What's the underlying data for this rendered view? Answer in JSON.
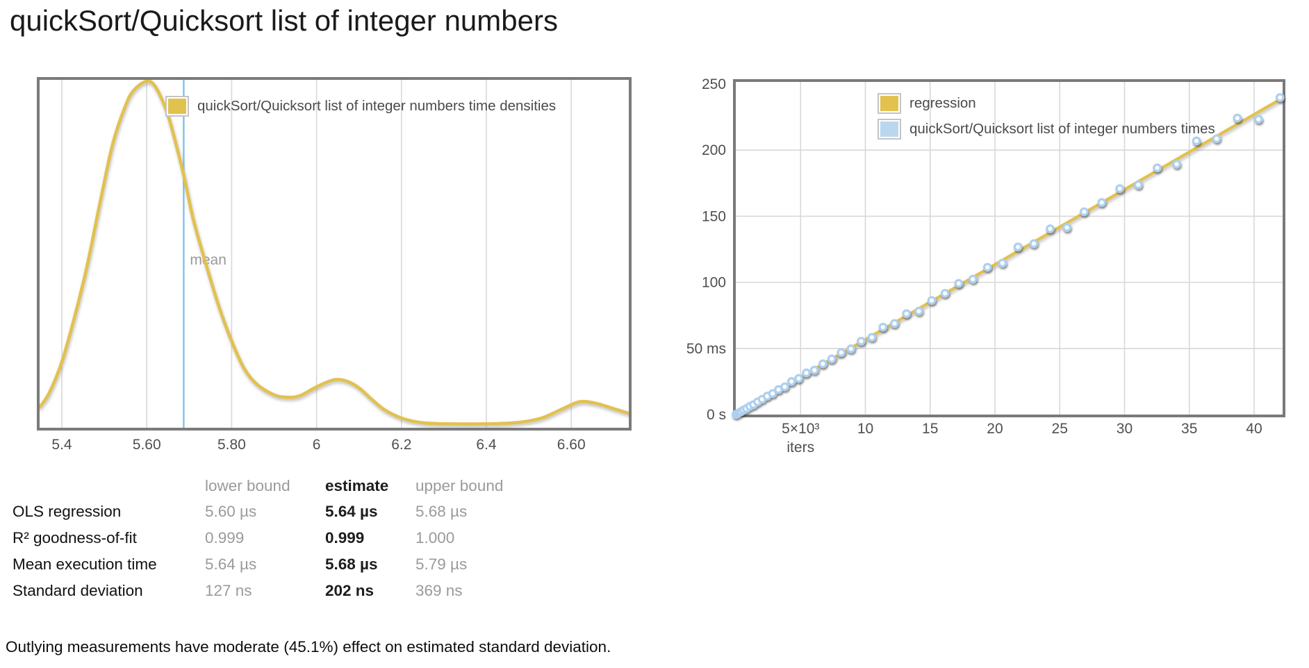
{
  "title": "quickSort/Quicksort list of integer numbers",
  "note": "Outlying measurements have moderate (45.1%) effect on estimated standard deviation.",
  "colors": {
    "gold": "#e2c14f",
    "blue_fill": "#b9d8f0",
    "point_ring": "#aed0ee",
    "mean_line": "#85c6ea",
    "border": "#7a7a7a",
    "grid": "#d8d8d8",
    "tick_text": "#4f4f4f",
    "muted_text": "#999999",
    "legend_text": "#4a4a4a"
  },
  "table": {
    "headers": [
      "lower bound",
      "estimate",
      "upper bound"
    ],
    "rows": [
      {
        "label": "OLS regression",
        "lower": "5.60 µs",
        "estimate": "5.64 µs",
        "upper": "5.68 µs"
      },
      {
        "label": "R² goodness-of-fit",
        "lower": "0.999",
        "estimate": "0.999",
        "upper": "1.000"
      },
      {
        "label": "Mean execution time",
        "lower": "5.64 µs",
        "estimate": "5.68 µs",
        "upper": "5.79 µs"
      },
      {
        "label": "Standard deviation",
        "lower": "127 ns",
        "estimate": "202 ns",
        "upper": "369 ns"
      }
    ]
  },
  "chart_data": [
    {
      "type": "line",
      "name": "time-density",
      "legend": "quickSort/Quicksort list of integer numbers time densities",
      "x_unit": "µs",
      "xlim": [
        5.3476,
        6.7355
      ],
      "x_ticks": [
        {
          "v": 5.4,
          "label": "5.4"
        },
        {
          "v": 5.6,
          "label": "5.60"
        },
        {
          "v": 5.8,
          "label": "5.80"
        },
        {
          "v": 6.0,
          "label": "6"
        },
        {
          "v": 6.2,
          "label": "6.2"
        },
        {
          "v": 6.4,
          "label": "6.4"
        },
        {
          "v": 6.6,
          "label": "6.60"
        }
      ],
      "grid": "vertical",
      "mean": {
        "value": 5.687,
        "label": "mean"
      },
      "points": [
        [
          5.348,
          0.06
        ],
        [
          5.37,
          0.1
        ],
        [
          5.4,
          0.19
        ],
        [
          5.43,
          0.32
        ],
        [
          5.46,
          0.47
        ],
        [
          5.49,
          0.65
        ],
        [
          5.52,
          0.82
        ],
        [
          5.55,
          0.93
        ],
        [
          5.57,
          0.975
        ],
        [
          5.6,
          1.0
        ],
        [
          5.62,
          0.985
        ],
        [
          5.645,
          0.92
        ],
        [
          5.66,
          0.86
        ],
        [
          5.687,
          0.73
        ],
        [
          5.71,
          0.6
        ],
        [
          5.74,
          0.47
        ],
        [
          5.77,
          0.35
        ],
        [
          5.8,
          0.25
        ],
        [
          5.83,
          0.17
        ],
        [
          5.86,
          0.125
        ],
        [
          5.9,
          0.095
        ],
        [
          5.93,
          0.088
        ],
        [
          5.96,
          0.092
        ],
        [
          6.0,
          0.118
        ],
        [
          6.04,
          0.138
        ],
        [
          6.07,
          0.135
        ],
        [
          6.1,
          0.115
        ],
        [
          6.13,
          0.082
        ],
        [
          6.16,
          0.052
        ],
        [
          6.2,
          0.028
        ],
        [
          6.24,
          0.016
        ],
        [
          6.28,
          0.012
        ],
        [
          6.33,
          0.011
        ],
        [
          6.38,
          0.011
        ],
        [
          6.43,
          0.012
        ],
        [
          6.48,
          0.016
        ],
        [
          6.53,
          0.028
        ],
        [
          6.58,
          0.055
        ],
        [
          6.62,
          0.075
        ],
        [
          6.66,
          0.07
        ],
        [
          6.7,
          0.055
        ],
        [
          6.735,
          0.042
        ]
      ]
    },
    {
      "type": "scatter",
      "name": "linear-regression",
      "legend_regression": "regression",
      "legend_times": "quickSort/Quicksort list of integer numbers times",
      "xlabel": "iters",
      "xlim": [
        0,
        42200
      ],
      "ylim": [
        0,
        251.6
      ],
      "grid": "both",
      "x_ticks": [
        {
          "v": 5000,
          "label": "5×10³"
        },
        {
          "v": 10000,
          "label": "10"
        },
        {
          "v": 15000,
          "label": "15"
        },
        {
          "v": 20000,
          "label": "20"
        },
        {
          "v": 25000,
          "label": "25"
        },
        {
          "v": 30000,
          "label": "30"
        },
        {
          "v": 35000,
          "label": "35"
        },
        {
          "v": 40000,
          "label": "40"
        }
      ],
      "y_ticks": [
        {
          "v": 0,
          "label": "0 s"
        },
        {
          "v": 50,
          "label": "50 ms"
        },
        {
          "v": 100,
          "label": "100"
        },
        {
          "v": 150,
          "label": "150"
        },
        {
          "v": 200,
          "label": "200"
        },
        {
          "v": 250,
          "label": "250"
        }
      ],
      "regression_slope_ms_per_iter": 0.005675,
      "points": [
        [
          17,
          0.1
        ],
        [
          67,
          0.4
        ],
        [
          151,
          0.8
        ],
        [
          269,
          1.5
        ],
        [
          420,
          2.3
        ],
        [
          605,
          3.5
        ],
        [
          823,
          4.6
        ],
        [
          1075,
          6.2
        ],
        [
          1361,
          7.5
        ],
        [
          1680,
          9.6
        ],
        [
          2033,
          11.6
        ],
        [
          2419,
          13.9
        ],
        [
          2839,
          15.9
        ],
        [
          3293,
          18.9
        ],
        [
          3780,
          21.0
        ],
        [
          4301,
          25.0
        ],
        [
          4855,
          27.3
        ],
        [
          5443,
          31.5
        ],
        [
          6065,
          33.6
        ],
        [
          6720,
          38.4
        ],
        [
          7409,
          42.1
        ],
        [
          8131,
          46.9
        ],
        [
          8887,
          49.7
        ],
        [
          9677,
          55.5
        ],
        [
          10500,
          58.4
        ],
        [
          11357,
          66.1
        ],
        [
          12247,
          68.9
        ],
        [
          13171,
          76.3
        ],
        [
          14129,
          78.2
        ],
        [
          15120,
          86.3
        ],
        [
          16145,
          91.7
        ],
        [
          17203,
          99.2
        ],
        [
          18295,
          102.4
        ],
        [
          19421,
          111.4
        ],
        [
          20580,
          114.6
        ],
        [
          21773,
          126.8
        ],
        [
          22999,
          129.3
        ],
        [
          24259,
          140.5
        ],
        [
          25553,
          141.5
        ],
        [
          26880,
          153.4
        ],
        [
          28241,
          160.4
        ],
        [
          29635,
          170.9
        ],
        [
          31063,
          173.8
        ],
        [
          32525,
          186.6
        ],
        [
          34020,
          189.4
        ],
        [
          35549,
          207.0
        ],
        [
          37111,
          208.7
        ],
        [
          38707,
          224.3
        ],
        [
          40337,
          223.4
        ],
        [
          42000,
          239.8
        ]
      ]
    }
  ]
}
